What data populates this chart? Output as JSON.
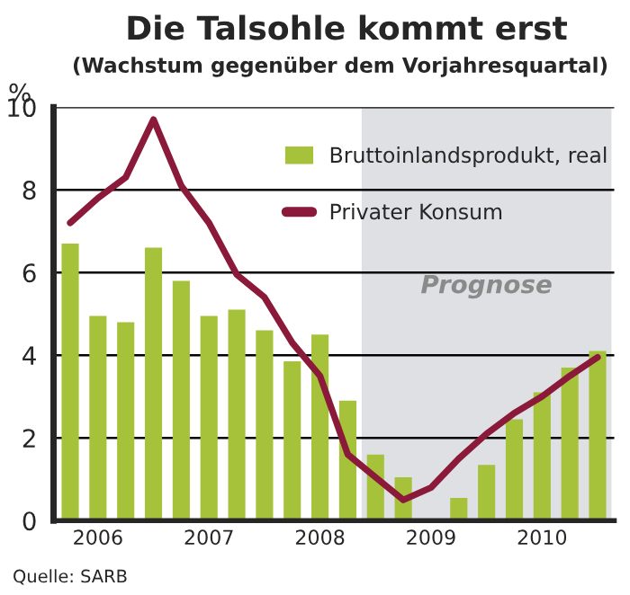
{
  "chart_data": {
    "type": "bar",
    "title": "Die Talsohle kommt erst",
    "subtitle": "(Wachstum gegenüber dem Vorjahresquartal)",
    "ylabel": "%",
    "categories": [
      null,
      "2006",
      null,
      null,
      null,
      "2007",
      null,
      null,
      null,
      "2008",
      null,
      null,
      null,
      "2009",
      null,
      null,
      null,
      "2010",
      null,
      null
    ],
    "series": [
      {
        "name": "Bruttoinlandsprodukt, real",
        "color": "#a5c23a",
        "values": [
          6.7,
          4.95,
          4.8,
          6.6,
          5.8,
          4.95,
          5.1,
          4.6,
          3.85,
          4.5,
          2.9,
          1.6,
          1.05,
          null,
          0.55,
          1.35,
          2.45,
          3.1,
          3.7,
          4.1
        ]
      },
      {
        "name": "Privater Konsum",
        "type": "line",
        "color": "#8b1a3a",
        "values": [
          7.2,
          7.8,
          8.3,
          9.7,
          8.1,
          7.2,
          5.95,
          5.4,
          4.3,
          3.5,
          1.6,
          1.05,
          0.5,
          0.8,
          1.5,
          2.1,
          2.6,
          3.0,
          3.5,
          3.95
        ]
      }
    ],
    "ylim": [
      0,
      10
    ],
    "yticks": [
      0,
      2,
      4,
      6,
      8,
      10
    ],
    "grid": "y",
    "legend": "top right",
    "annotations": [
      "Prognose",
      "Quelle: SARB"
    ]
  }
}
